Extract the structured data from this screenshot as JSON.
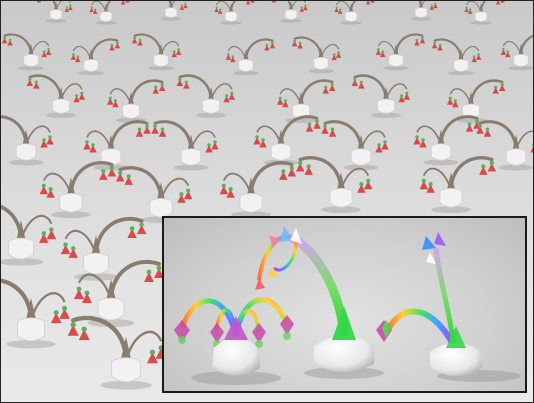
{
  "image": {
    "subject": "field-of-procedural-plants",
    "inset": "close-up-of-three-colored-plants"
  },
  "colors": {
    "background": "#d9d9d9",
    "pot": "#f2f2f2",
    "stem": "#8a7d6e",
    "flower_red": "#d93a3a",
    "flower_green": "#5fae5f",
    "inset_border": "#1a1a1a"
  }
}
